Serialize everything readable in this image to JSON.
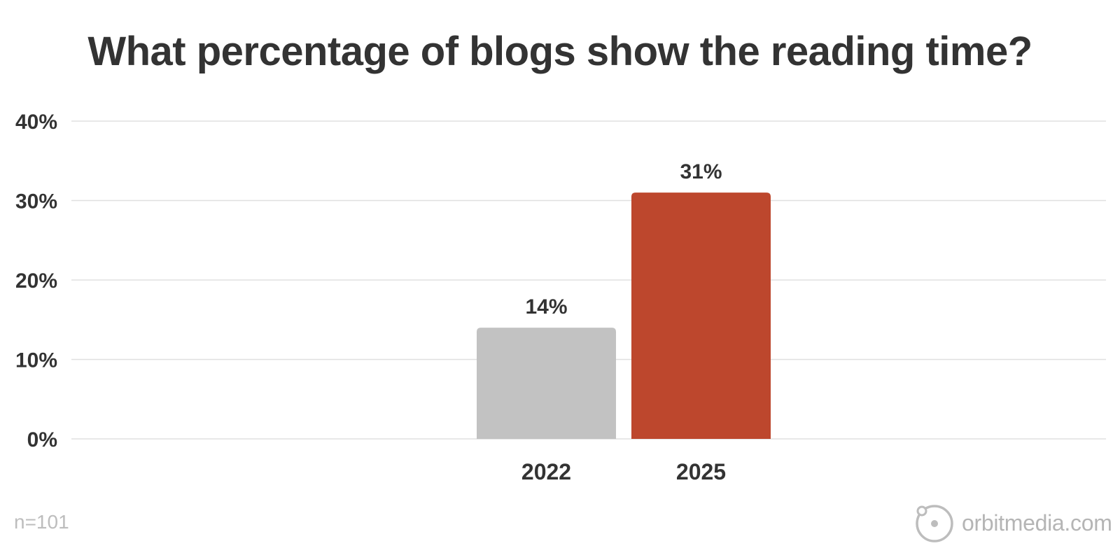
{
  "chart_data": {
    "type": "bar",
    "title": "What percentage of blogs show the reading time?",
    "xlabel": "",
    "ylabel": "",
    "categories": [
      "2022",
      "2025"
    ],
    "values": [
      14,
      31
    ],
    "value_labels": [
      "14%",
      "31%"
    ],
    "bar_colors": [
      "#c2c2c2",
      "#bd472d"
    ],
    "ylim": [
      0,
      40
    ],
    "yticks": [
      0,
      10,
      20,
      30,
      40
    ],
    "ytick_labels": [
      "0%",
      "10%",
      "20%",
      "30%",
      "40%"
    ],
    "grid": true,
    "legend": "none"
  },
  "footer": {
    "sample_size": "n=101",
    "brand": "orbitmedia.com"
  },
  "colors": {
    "text": "#333333",
    "grid": "#e0e0e0",
    "muted": "#b5b5b5"
  }
}
